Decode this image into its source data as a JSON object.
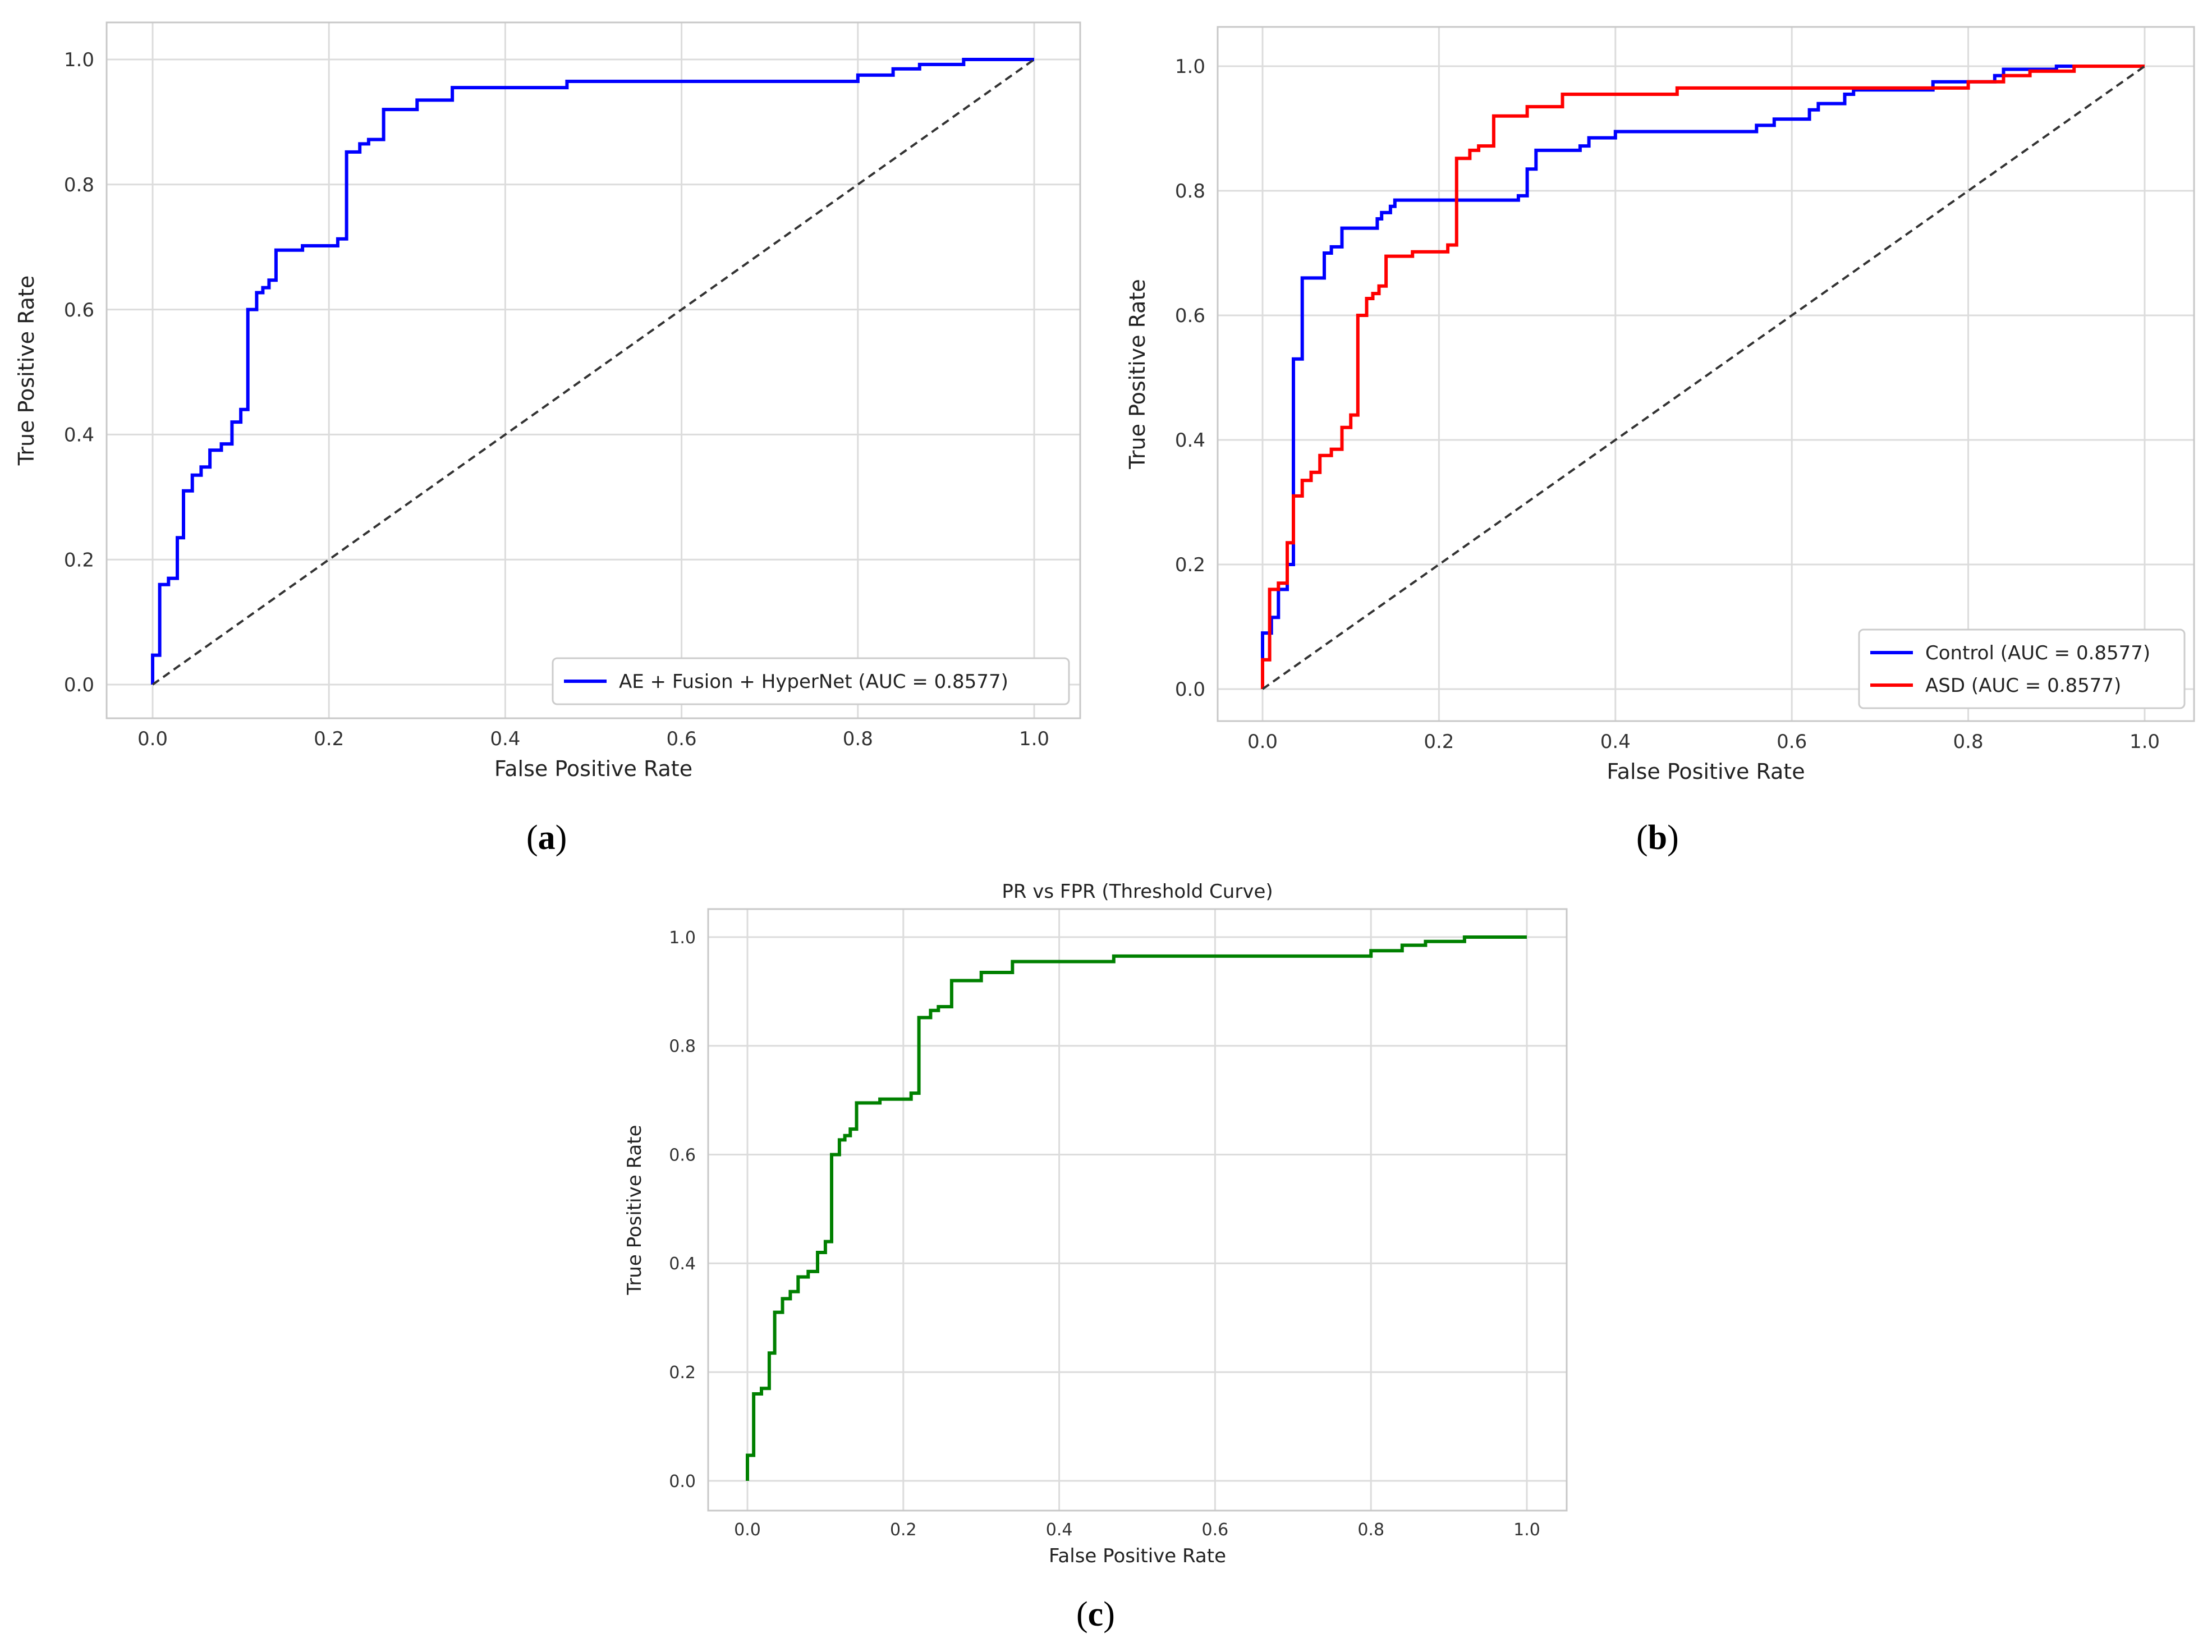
{
  "panels": [
    {
      "id": "a",
      "caption": "a",
      "chart_data": {
        "type": "line",
        "title": "",
        "xlabel": "False Positive Rate",
        "ylabel": "True Positive Rate",
        "xlim": [
          0,
          1
        ],
        "ylim": [
          0,
          1
        ],
        "xticks": [
          "0.0",
          "0.2",
          "0.4",
          "0.6",
          "0.8",
          "1.0"
        ],
        "yticks": [
          "0.0",
          "0.2",
          "0.4",
          "0.6",
          "0.8",
          "1.0"
        ],
        "grid": true,
        "legend_position": "lower-right",
        "series": [
          {
            "name": "AE + Fusion + HyperNet (AUC = 0.8577)",
            "color": "#0000ff",
            "style": "solid",
            "x": [
              0.0,
              0.0,
              0.008,
              0.008,
              0.018,
              0.018,
              0.028,
              0.028,
              0.035,
              0.035,
              0.045,
              0.045,
              0.055,
              0.055,
              0.065,
              0.065,
              0.078,
              0.078,
              0.09,
              0.09,
              0.1,
              0.1,
              0.108,
              0.108,
              0.118,
              0.118,
              0.125,
              0.125,
              0.132,
              0.132,
              0.14,
              0.14,
              0.17,
              0.17,
              0.21,
              0.21,
              0.22,
              0.22,
              0.235,
              0.235,
              0.245,
              0.245,
              0.262,
              0.262,
              0.3,
              0.3,
              0.34,
              0.34,
              0.47,
              0.47,
              0.8,
              0.8,
              0.84,
              0.84,
              0.87,
              0.87,
              0.92,
              0.92,
              1.0
            ],
            "y": [
              0.0,
              0.047,
              0.047,
              0.16,
              0.16,
              0.17,
              0.17,
              0.235,
              0.235,
              0.31,
              0.31,
              0.335,
              0.335,
              0.348,
              0.348,
              0.375,
              0.375,
              0.385,
              0.385,
              0.42,
              0.42,
              0.44,
              0.44,
              0.6,
              0.6,
              0.627,
              0.627,
              0.635,
              0.635,
              0.647,
              0.647,
              0.695,
              0.695,
              0.702,
              0.702,
              0.713,
              0.713,
              0.852,
              0.852,
              0.865,
              0.865,
              0.872,
              0.872,
              0.92,
              0.92,
              0.935,
              0.935,
              0.955,
              0.955,
              0.965,
              0.965,
              0.975,
              0.975,
              0.985,
              0.985,
              0.992,
              0.992,
              1.0,
              1.0
            ]
          },
          {
            "name": "",
            "color": "#333333",
            "style": "dashed",
            "x": [
              0,
              1
            ],
            "y": [
              0,
              1
            ]
          }
        ]
      }
    },
    {
      "id": "b",
      "caption": "b",
      "chart_data": {
        "type": "line",
        "title": "",
        "xlabel": "False Positive Rate",
        "ylabel": "True Positive Rate",
        "xlim": [
          0,
          1
        ],
        "ylim": [
          0,
          1
        ],
        "xticks": [
          "0.0",
          "0.2",
          "0.4",
          "0.6",
          "0.8",
          "1.0"
        ],
        "yticks": [
          "0.0",
          "0.2",
          "0.4",
          "0.6",
          "0.8",
          "1.0"
        ],
        "grid": true,
        "legend_position": "lower-right",
        "series": [
          {
            "name": "Control (AUC = 0.8577)",
            "color": "#0000ff",
            "style": "solid",
            "x": [
              0.0,
              0.0,
              0.01,
              0.01,
              0.018,
              0.018,
              0.028,
              0.028,
              0.035,
              0.035,
              0.045,
              0.045,
              0.07,
              0.07,
              0.078,
              0.078,
              0.09,
              0.09,
              0.13,
              0.13,
              0.135,
              0.135,
              0.145,
              0.145,
              0.15,
              0.15,
              0.29,
              0.29,
              0.3,
              0.3,
              0.31,
              0.31,
              0.36,
              0.36,
              0.37,
              0.37,
              0.4,
              0.4,
              0.56,
              0.56,
              0.58,
              0.58,
              0.62,
              0.62,
              0.63,
              0.63,
              0.66,
              0.66,
              0.67,
              0.67,
              0.76,
              0.76,
              0.83,
              0.83,
              0.84,
              0.84,
              0.9,
              0.9,
              1.0
            ],
            "y": [
              0.0,
              0.09,
              0.09,
              0.115,
              0.115,
              0.16,
              0.16,
              0.2,
              0.2,
              0.53,
              0.53,
              0.66,
              0.66,
              0.7,
              0.7,
              0.71,
              0.71,
              0.74,
              0.74,
              0.755,
              0.755,
              0.765,
              0.765,
              0.775,
              0.775,
              0.785,
              0.785,
              0.792,
              0.792,
              0.835,
              0.835,
              0.865,
              0.865,
              0.872,
              0.872,
              0.885,
              0.885,
              0.895,
              0.895,
              0.905,
              0.905,
              0.915,
              0.915,
              0.93,
              0.93,
              0.94,
              0.94,
              0.955,
              0.955,
              0.962,
              0.962,
              0.975,
              0.975,
              0.985,
              0.985,
              0.995,
              0.995,
              1.0,
              1.0
            ]
          },
          {
            "name": "ASD (AUC = 0.8577)",
            "color": "#ff0000",
            "style": "solid",
            "x": [
              0.0,
              0.0,
              0.008,
              0.008,
              0.018,
              0.018,
              0.028,
              0.028,
              0.035,
              0.035,
              0.045,
              0.045,
              0.055,
              0.055,
              0.065,
              0.065,
              0.078,
              0.078,
              0.09,
              0.09,
              0.1,
              0.1,
              0.108,
              0.108,
              0.118,
              0.118,
              0.125,
              0.125,
              0.132,
              0.132,
              0.14,
              0.14,
              0.17,
              0.17,
              0.21,
              0.21,
              0.22,
              0.22,
              0.235,
              0.235,
              0.245,
              0.245,
              0.262,
              0.262,
              0.3,
              0.3,
              0.34,
              0.34,
              0.47,
              0.47,
              0.8,
              0.8,
              0.84,
              0.84,
              0.87,
              0.87,
              0.92,
              0.92,
              1.0
            ],
            "y": [
              0.0,
              0.047,
              0.047,
              0.16,
              0.16,
              0.17,
              0.17,
              0.235,
              0.235,
              0.31,
              0.31,
              0.335,
              0.335,
              0.348,
              0.348,
              0.375,
              0.375,
              0.385,
              0.385,
              0.42,
              0.42,
              0.44,
              0.44,
              0.6,
              0.6,
              0.627,
              0.627,
              0.635,
              0.635,
              0.647,
              0.647,
              0.695,
              0.695,
              0.702,
              0.702,
              0.713,
              0.713,
              0.852,
              0.852,
              0.865,
              0.865,
              0.872,
              0.872,
              0.92,
              0.92,
              0.935,
              0.935,
              0.955,
              0.955,
              0.965,
              0.965,
              0.975,
              0.975,
              0.985,
              0.985,
              0.992,
              0.992,
              1.0,
              1.0
            ]
          },
          {
            "name": "",
            "color": "#333333",
            "style": "dashed",
            "x": [
              0,
              1
            ],
            "y": [
              0,
              1
            ]
          }
        ]
      }
    },
    {
      "id": "c",
      "caption": "c",
      "chart_data": {
        "type": "line",
        "title": "PR vs FPR (Threshold Curve)",
        "xlabel": "False Positive Rate",
        "ylabel": "True Positive Rate",
        "xlim": [
          0,
          1
        ],
        "ylim": [
          0,
          1
        ],
        "xticks": [
          "0.0",
          "0.2",
          "0.4",
          "0.6",
          "0.8",
          "1.0"
        ],
        "yticks": [
          "0.0",
          "0.2",
          "0.4",
          "0.6",
          "0.8",
          "1.0"
        ],
        "grid": true,
        "legend_position": "none",
        "series": [
          {
            "name": "",
            "color": "#008000",
            "style": "solid",
            "x": [
              0.0,
              0.0,
              0.008,
              0.008,
              0.018,
              0.018,
              0.028,
              0.028,
              0.035,
              0.035,
              0.045,
              0.045,
              0.055,
              0.055,
              0.065,
              0.065,
              0.078,
              0.078,
              0.09,
              0.09,
              0.1,
              0.1,
              0.108,
              0.108,
              0.118,
              0.118,
              0.125,
              0.125,
              0.132,
              0.132,
              0.14,
              0.14,
              0.17,
              0.17,
              0.21,
              0.21,
              0.22,
              0.22,
              0.235,
              0.235,
              0.245,
              0.245,
              0.262,
              0.262,
              0.3,
              0.3,
              0.34,
              0.34,
              0.47,
              0.47,
              0.8,
              0.8,
              0.84,
              0.84,
              0.87,
              0.87,
              0.92,
              0.92,
              1.0
            ],
            "y": [
              0.0,
              0.047,
              0.047,
              0.16,
              0.16,
              0.17,
              0.17,
              0.235,
              0.235,
              0.31,
              0.31,
              0.335,
              0.335,
              0.348,
              0.348,
              0.375,
              0.375,
              0.385,
              0.385,
              0.42,
              0.42,
              0.44,
              0.44,
              0.6,
              0.6,
              0.627,
              0.627,
              0.635,
              0.635,
              0.647,
              0.647,
              0.695,
              0.695,
              0.702,
              0.702,
              0.713,
              0.713,
              0.852,
              0.852,
              0.865,
              0.865,
              0.872,
              0.872,
              0.92,
              0.92,
              0.935,
              0.935,
              0.955,
              0.955,
              0.965,
              0.965,
              0.975,
              0.975,
              0.985,
              0.985,
              0.992,
              0.992,
              1.0,
              1.0
            ]
          }
        ]
      }
    }
  ]
}
